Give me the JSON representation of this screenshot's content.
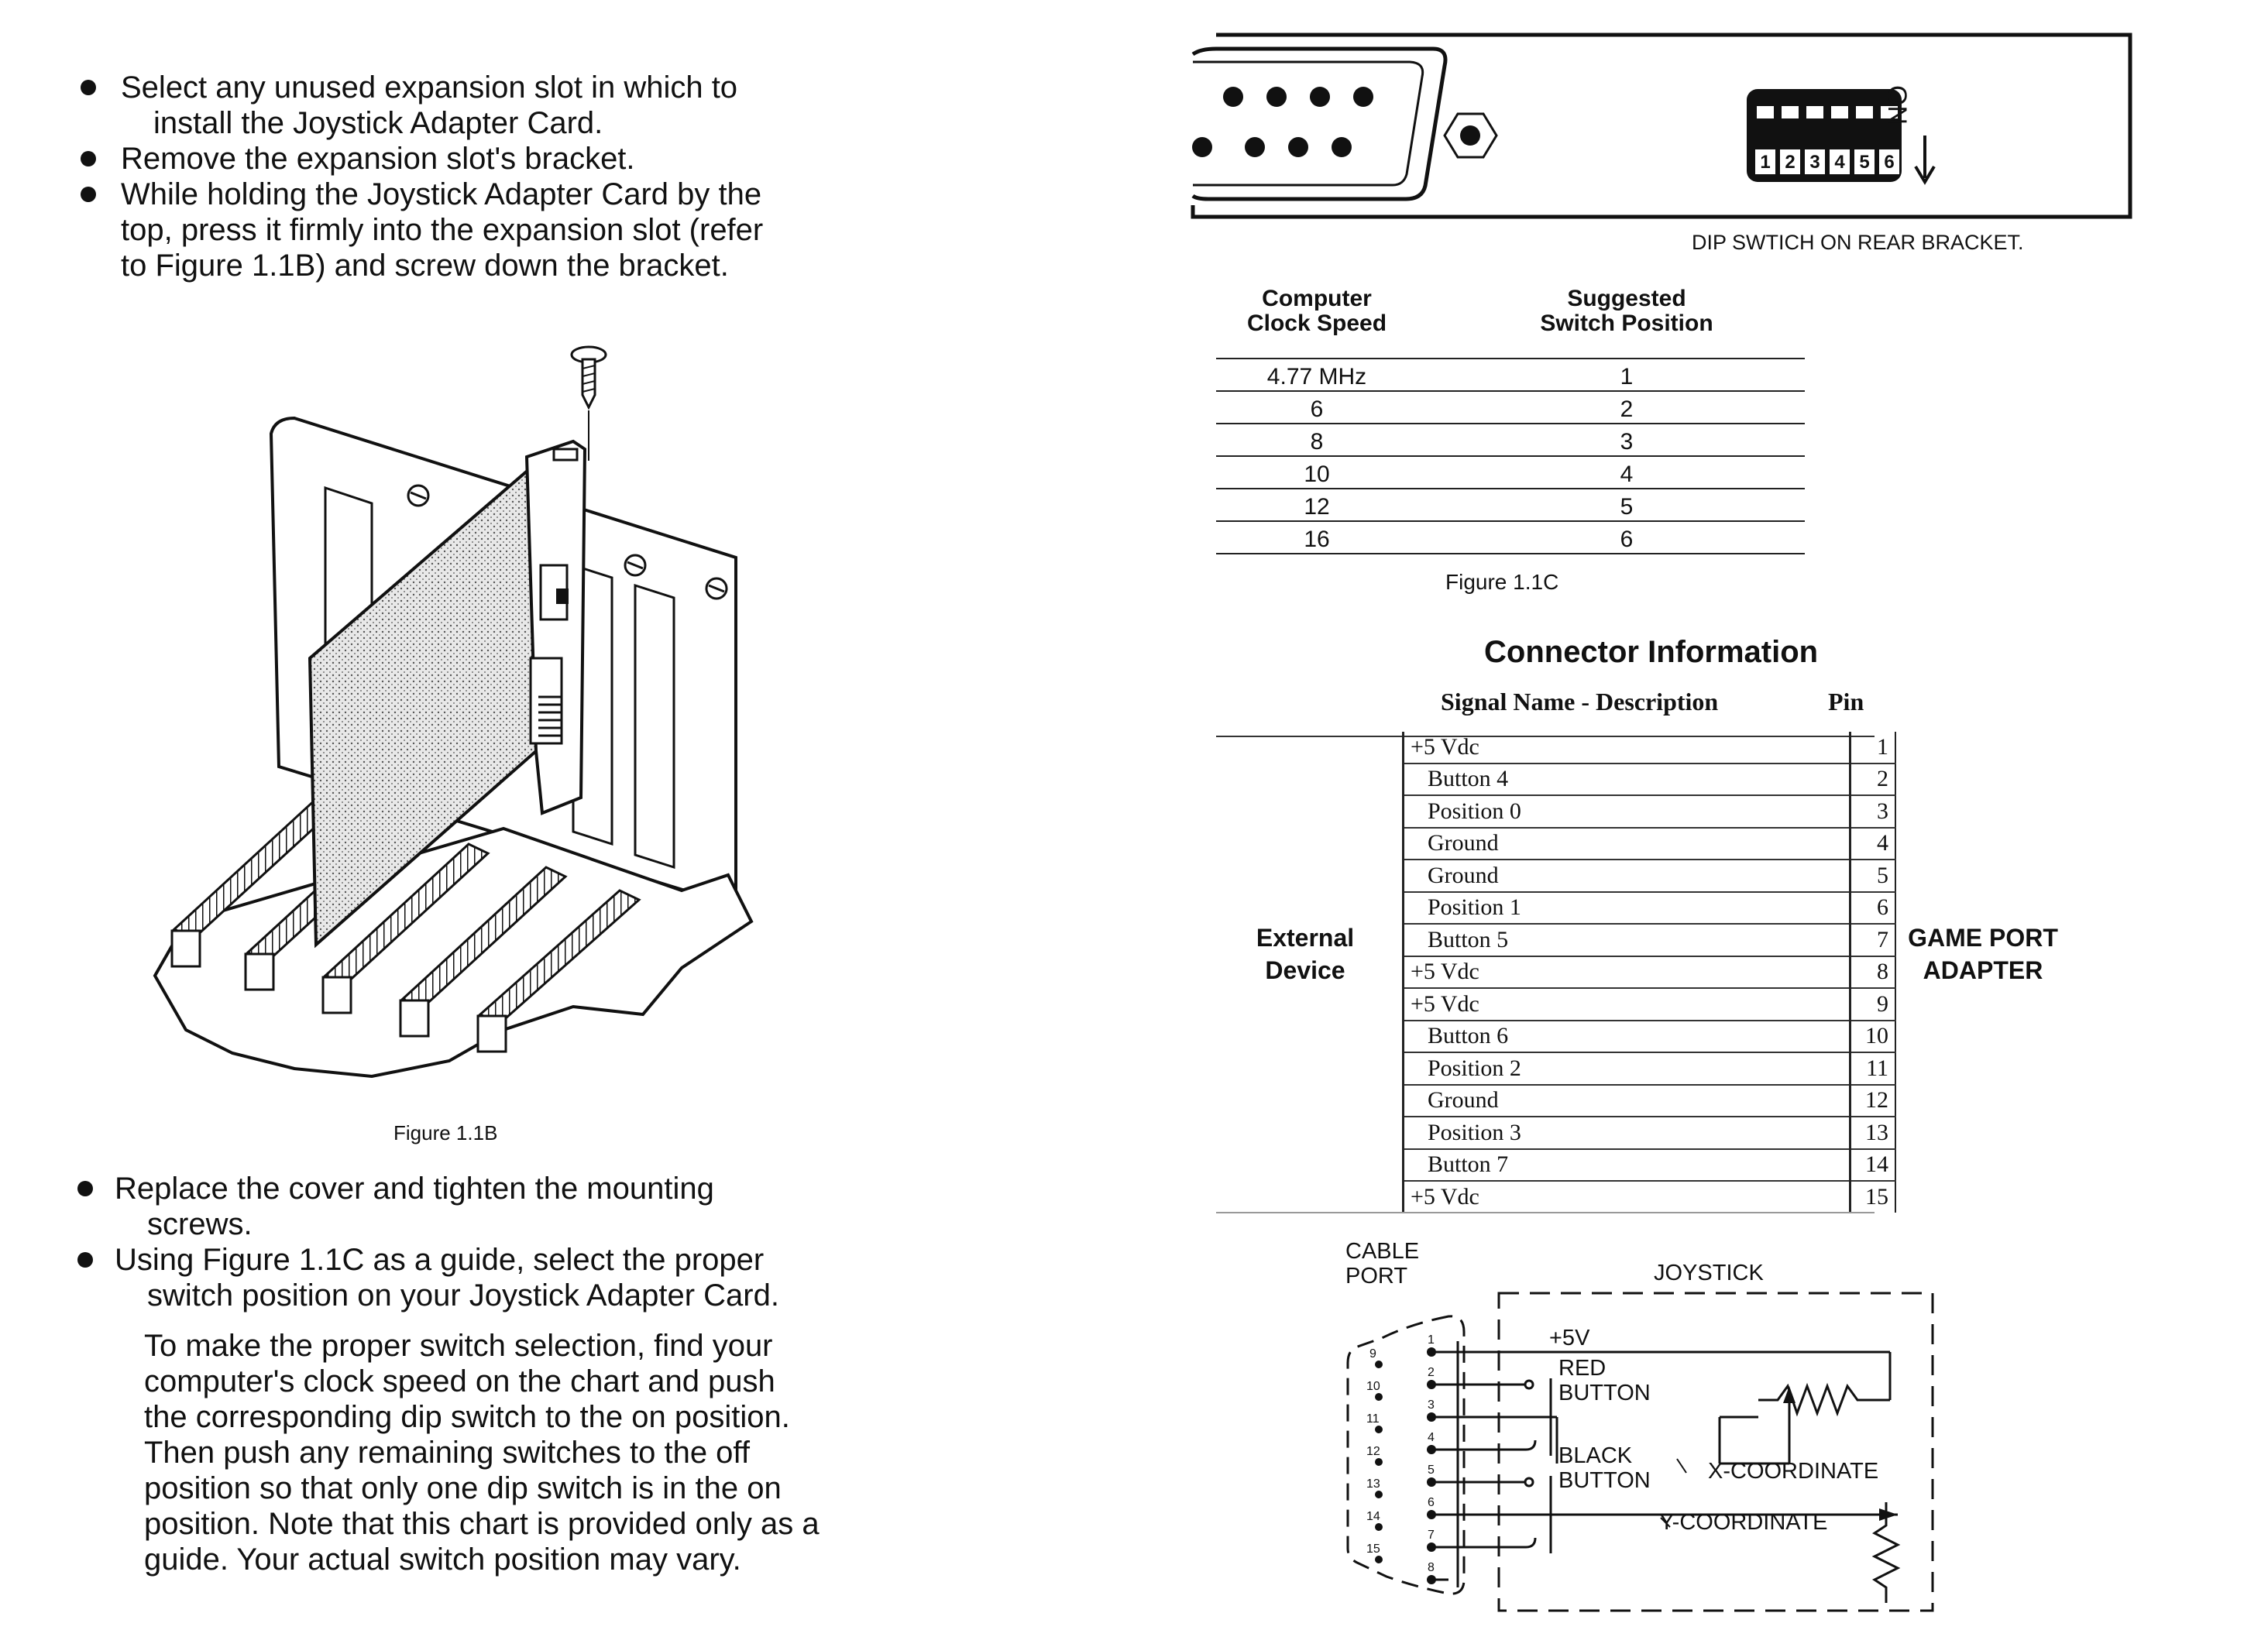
{
  "left_column": {
    "bullets_top": [
      {
        "first": "Select any unused expansion slot in which to",
        "cont": [
          "install the Joystick Adapter Card."
        ]
      },
      {
        "first": "Remove the expansion slot's bracket.",
        "cont": []
      },
      {
        "first": "While holding the Joystick Adapter Card by the",
        "cont": [
          "top, press it firmly into the expansion slot (refer",
          "to Figure 1.1B) and screw down the bracket."
        ]
      }
    ],
    "figure_b_caption": "Figure 1.1B",
    "bullets_bottom": [
      {
        "first": "Replace the cover and tighten the mounting",
        "cont": [
          "screws."
        ]
      },
      {
        "first": "Using Figure 1.1C as a guide, select the proper",
        "cont": [
          "switch position on your Joystick Adapter Card."
        ]
      }
    ],
    "paragraph_lines": [
      "To make the proper switch selection, find your",
      "computer's clock speed on the chart and push",
      "the corresponding dip switch to the on position.",
      "Then push any remaining switches to the off",
      "position so that only one dip switch is in the on",
      "position. Note that this chart is provided only as a",
      "guide. Your actual switch position may vary."
    ]
  },
  "dip_figure": {
    "on_label": "ON",
    "switch_numbers": [
      "1",
      "2",
      "3",
      "4",
      "5",
      "6"
    ],
    "caption": "DIP SWTICH ON REAR BRACKET."
  },
  "clock_table": {
    "header_col1": [
      "Computer",
      "Clock Speed"
    ],
    "header_col2": [
      "Suggested",
      "Switch Position"
    ],
    "rows": [
      {
        "speed": "4.77 MHz",
        "position": "1"
      },
      {
        "speed": "6",
        "position": "2"
      },
      {
        "speed": "8",
        "position": "3"
      },
      {
        "speed": "10",
        "position": "4"
      },
      {
        "speed": "12",
        "position": "5"
      },
      {
        "speed": "16",
        "position": "6"
      }
    ],
    "caption": "Figure 1.1C"
  },
  "connector": {
    "title": "Connector Information",
    "col_signal": "Signal Name - Description",
    "col_pin": "Pin",
    "left_label": [
      "External",
      "Device"
    ],
    "right_label": [
      "GAME PORT",
      "ADAPTER"
    ],
    "rows": [
      {
        "signal": "+5 Vdc",
        "pin": "1"
      },
      {
        "signal": "Button 4",
        "pin": "2"
      },
      {
        "signal": "Position 0",
        "pin": "3"
      },
      {
        "signal": "Ground",
        "pin": "4"
      },
      {
        "signal": "Ground",
        "pin": "5"
      },
      {
        "signal": "Position 1",
        "pin": "6"
      },
      {
        "signal": "Button 5",
        "pin": "7"
      },
      {
        "signal": "+5 Vdc",
        "pin": "8"
      },
      {
        "signal": "+5 Vdc",
        "pin": "9"
      },
      {
        "signal": "Button 6",
        "pin": "10"
      },
      {
        "signal": "Position 2",
        "pin": "11"
      },
      {
        "signal": "Ground",
        "pin": "12"
      },
      {
        "signal": "Position 3",
        "pin": "13"
      },
      {
        "signal": "Button 7",
        "pin": "14"
      },
      {
        "signal": "+5 Vdc",
        "pin": "15"
      }
    ]
  },
  "schematic": {
    "cable_port": [
      "CABLE",
      "PORT"
    ],
    "joystick": "JOYSTICK",
    "plus5v": "+5V",
    "red_button": [
      "RED",
      "BUTTON"
    ],
    "black_button": [
      "BLACK",
      "BUTTON"
    ],
    "x_coordinate": "X-COORDINATE",
    "y_coordinate": "Y-COORDINATE",
    "pins_left": [
      "9",
      "10",
      "11",
      "12",
      "13",
      "14",
      "15"
    ],
    "pins_right": [
      "1",
      "2",
      "3",
      "4",
      "5",
      "6",
      "7",
      "8"
    ]
  }
}
